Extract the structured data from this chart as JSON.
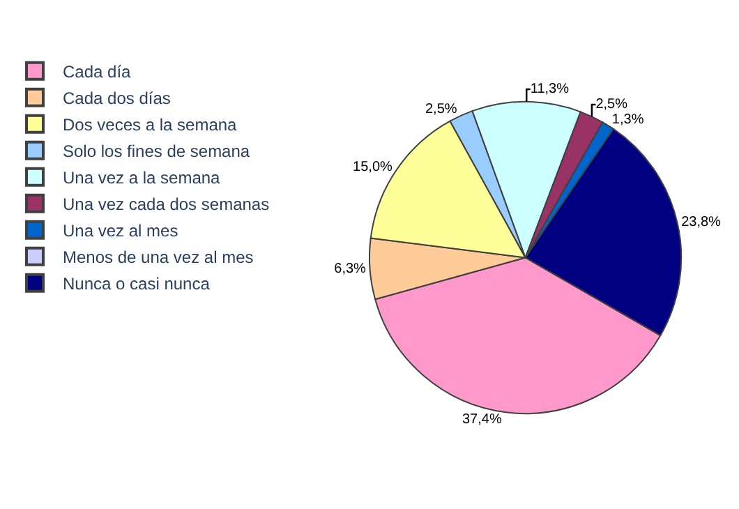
{
  "chart_data": {
    "type": "pie",
    "categories": [
      "Cada día",
      "Cada dos días",
      "Dos veces a la semana",
      "Solo los fines de semana",
      "Una vez a la semana",
      "Una vez cada dos semanas",
      "Una vez al mes",
      "Menos de una vez al mes",
      "Nunca o casi nunca"
    ],
    "values": [
      37.4,
      6.3,
      15.0,
      2.5,
      11.3,
      2.5,
      1.3,
      0,
      23.8
    ],
    "value_labels": [
      "37,4%",
      "6,3%",
      "15,0%",
      "2,5%",
      "11,3%",
      "2,5%",
      "1,3%",
      null,
      "23,8%"
    ],
    "colors": [
      "#ff99cc",
      "#ffcc99",
      "#ffff99",
      "#99ccff",
      "#ccffff",
      "#993366",
      "#0066cc",
      "#ccccff",
      "#000080"
    ],
    "legend": "left"
  }
}
